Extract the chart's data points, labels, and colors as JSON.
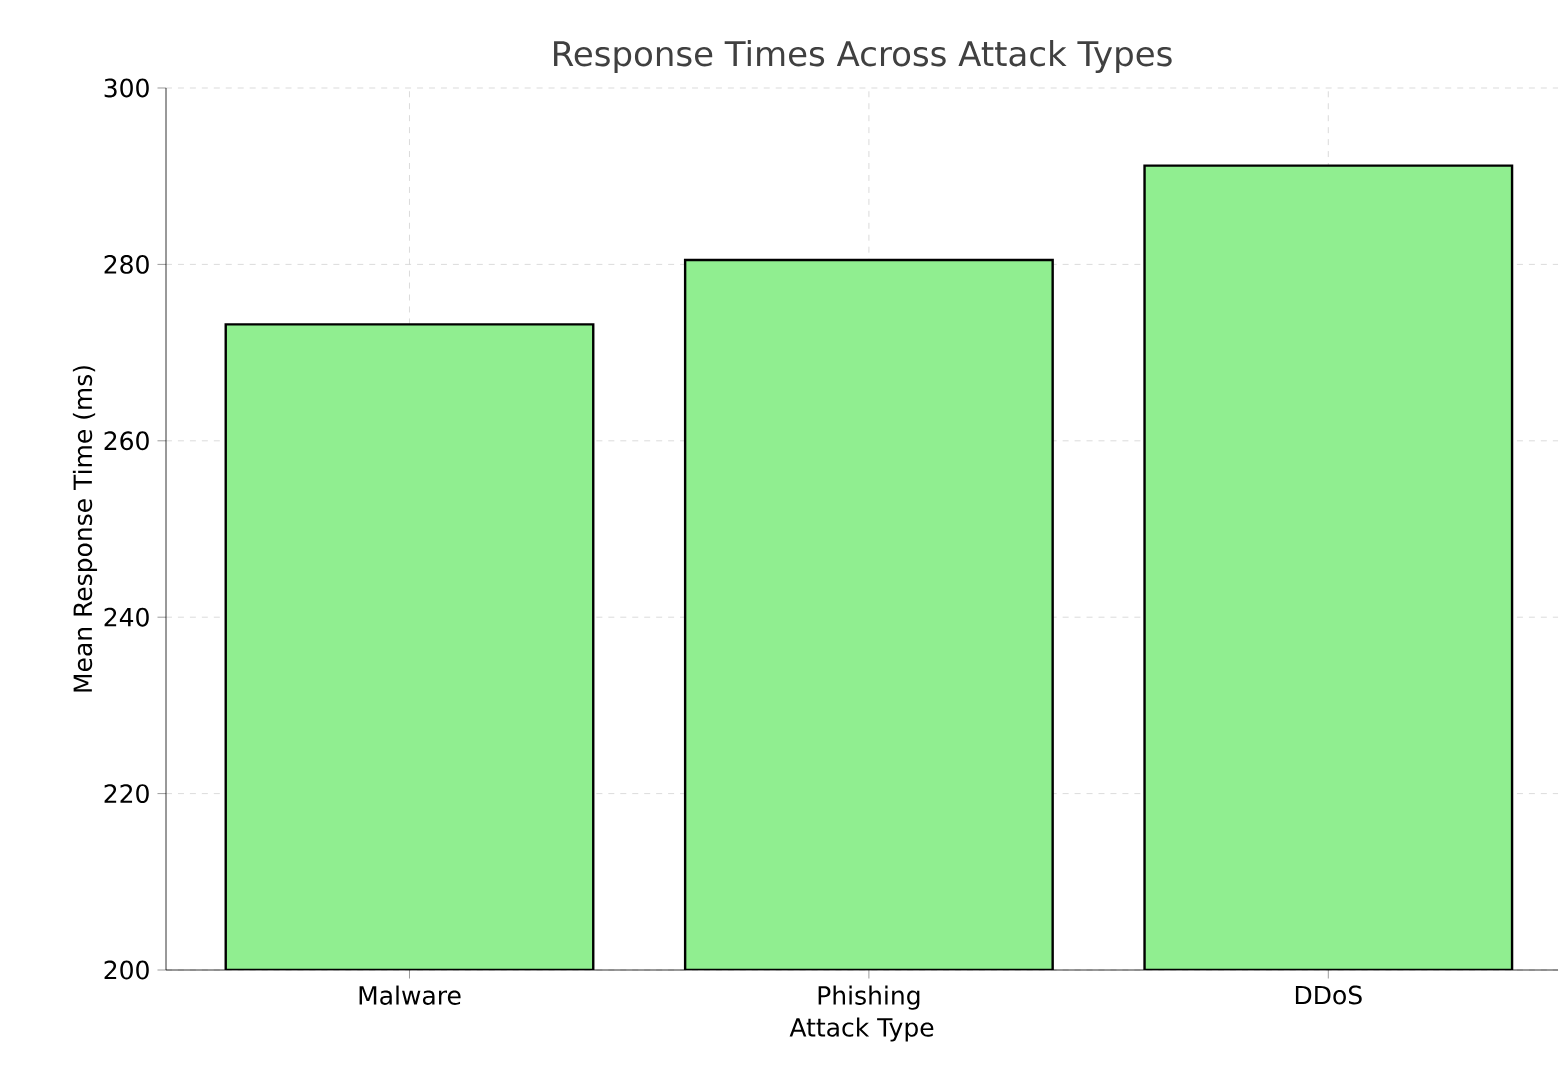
{
  "chart_data": {
    "type": "bar",
    "title": "Response Times Across Attack Types",
    "xlabel": "Attack Type",
    "ylabel": "Mean Response Time (ms)",
    "categories": [
      "Malware",
      "Phishing",
      "DDoS"
    ],
    "values": [
      273.2,
      280.5,
      291.2
    ],
    "color": "#90ee90",
    "ylim": [
      200,
      300
    ],
    "yticks": [
      200,
      220,
      240,
      260,
      280,
      300
    ],
    "grid": true
  }
}
